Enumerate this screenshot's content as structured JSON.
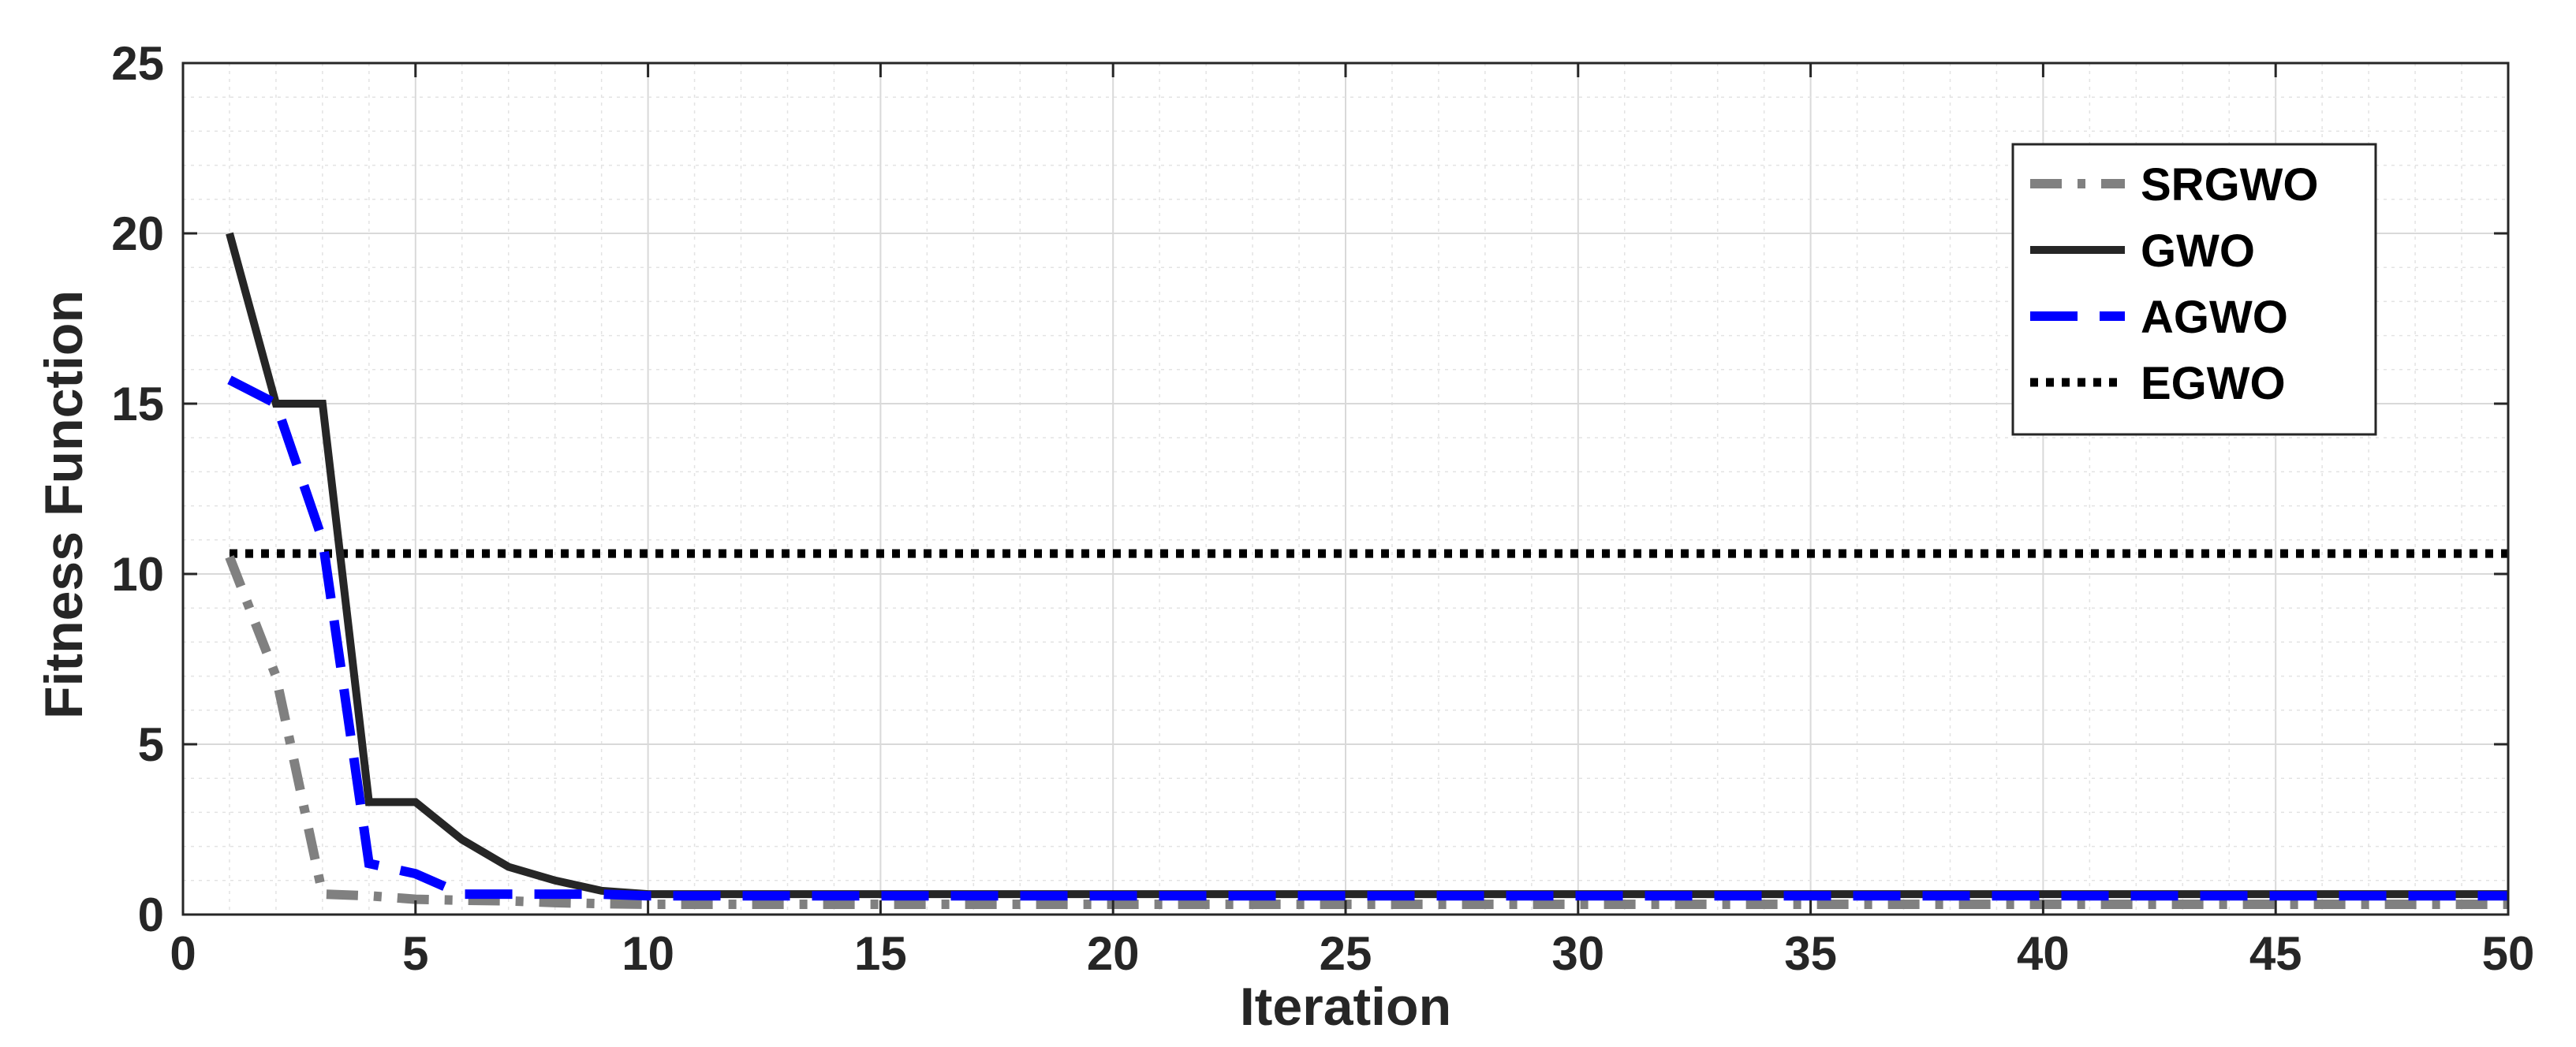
{
  "chart_data": {
    "type": "line",
    "title": "",
    "xlabel": "Iteration",
    "ylabel": "Fitness Function",
    "xlim": [
      0,
      50
    ],
    "ylim": [
      0,
      25
    ],
    "x_ticks": [
      0,
      5,
      10,
      15,
      20,
      25,
      30,
      35,
      40,
      45,
      50
    ],
    "y_ticks": [
      0,
      5,
      10,
      15,
      20,
      25
    ],
    "x_tick_labels": [
      "0",
      "5",
      "10",
      "15",
      "20",
      "25",
      "30",
      "35",
      "40",
      "45",
      "50"
    ],
    "y_tick_labels": [
      "0",
      "5",
      "10",
      "15",
      "20",
      "25"
    ],
    "grid": "on",
    "minor_grid": "on",
    "legend_position": "top-right",
    "series": [
      {
        "name": "SRGWO",
        "color": "#808080",
        "style": "dash-dot",
        "x": [
          1,
          2,
          3,
          4,
          5,
          6,
          7,
          8,
          9,
          10,
          15,
          20,
          25,
          30,
          35,
          40,
          45,
          50
        ],
        "y": [
          10.5,
          7.0,
          0.6,
          0.55,
          0.45,
          0.42,
          0.4,
          0.35,
          0.32,
          0.3,
          0.3,
          0.3,
          0.3,
          0.3,
          0.3,
          0.3,
          0.3,
          0.3
        ]
      },
      {
        "name": "GWO",
        "color": "#262626",
        "style": "solid",
        "x": [
          1,
          2,
          3,
          4,
          5,
          6,
          7,
          8,
          9,
          10,
          15,
          20,
          25,
          30,
          35,
          40,
          45,
          50
        ],
        "y": [
          20.0,
          15.0,
          15.0,
          3.3,
          3.3,
          2.2,
          1.4,
          1.0,
          0.7,
          0.6,
          0.6,
          0.6,
          0.6,
          0.6,
          0.6,
          0.6,
          0.6,
          0.6
        ]
      },
      {
        "name": "AGWO",
        "color": "#0000ff",
        "style": "dashed",
        "x": [
          1,
          2,
          3,
          4,
          5,
          6,
          7,
          8,
          9,
          10,
          15,
          20,
          25,
          30,
          35,
          40,
          45,
          50
        ],
        "y": [
          15.7,
          15.0,
          11.0,
          1.5,
          1.2,
          0.6,
          0.6,
          0.6,
          0.6,
          0.55,
          0.55,
          0.55,
          0.55,
          0.55,
          0.55,
          0.55,
          0.55,
          0.55
        ]
      },
      {
        "name": "EGWO",
        "color": "#000000",
        "style": "dotted",
        "x": [
          1,
          50
        ],
        "y": [
          10.6,
          10.6
        ]
      }
    ]
  }
}
